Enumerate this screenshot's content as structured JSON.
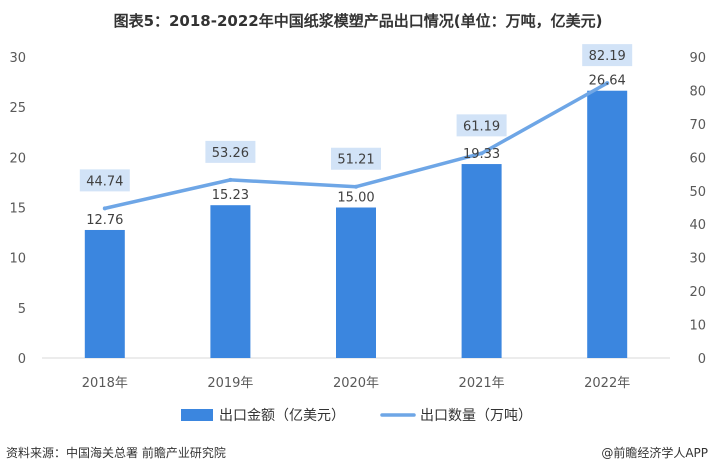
{
  "title": "图表5：2018-2022年中国纸浆模塑产品出口情况(单位：万吨，亿美元)",
  "chart_data": {
    "type": "bar",
    "categories": [
      "2018年",
      "2019年",
      "2020年",
      "2021年",
      "2022年"
    ],
    "series": [
      {
        "name": "出口金额（亿美元）",
        "type": "bar",
        "axis": "left",
        "values": [
          12.76,
          15.23,
          15.0,
          19.33,
          26.64
        ],
        "labels": [
          "12.76",
          "15.23",
          "15.00",
          "19.33",
          "26.64"
        ]
      },
      {
        "name": "出口数量（万吨）",
        "type": "line",
        "axis": "right",
        "values": [
          44.74,
          53.26,
          51.21,
          61.19,
          82.19
        ],
        "labels": [
          "44.74",
          "53.26",
          "51.21",
          "61.19",
          "82.19"
        ]
      }
    ],
    "y_left": {
      "min": 0,
      "max": 30,
      "ticks": [
        "0",
        "5",
        "10",
        "15",
        "20",
        "25",
        "30"
      ]
    },
    "y_right": {
      "min": 0,
      "max": 90,
      "ticks": [
        "0",
        "10",
        "20",
        "30",
        "40",
        "50",
        "60",
        "70",
        "80",
        "90"
      ]
    },
    "legend_position": "bottom",
    "grid": false,
    "colors": {
      "bar": "#3b86df",
      "line": "#6ea6e6",
      "label_box": "#d2e3f7",
      "axis": "#d9d9d9"
    }
  },
  "source": "资料来源：中国海关总署 前瞻产业研究院",
  "brand": "@前瞻经济学人APP"
}
